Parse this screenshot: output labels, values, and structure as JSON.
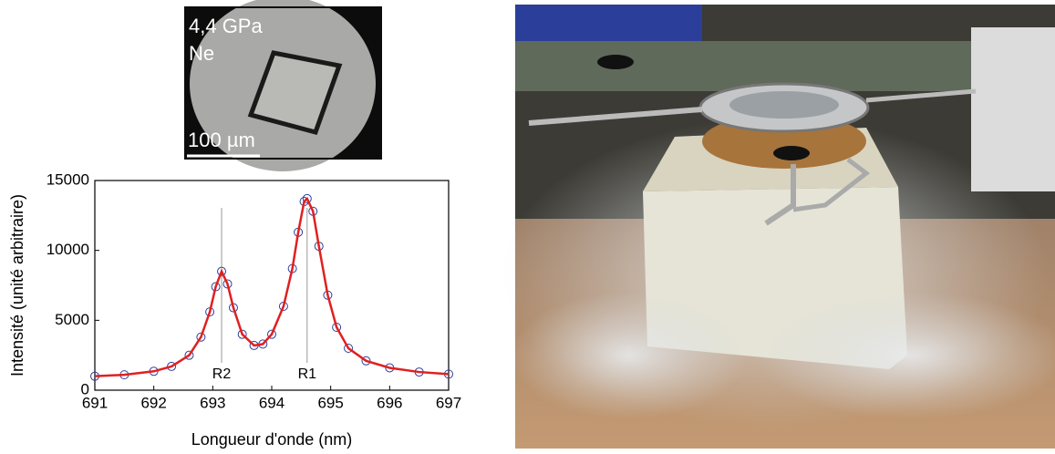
{
  "micrograph": {
    "labels": [
      "4,4 GPa",
      "Ne"
    ],
    "scale_bar": "100 µm"
  },
  "chart_data": {
    "type": "line",
    "x_label": "Longueur d'onde (nm)",
    "y_label": "Intensité (unité arbitraire)",
    "x": [
      691,
      691.5,
      692,
      692.3,
      692.6,
      692.8,
      692.95,
      693.05,
      693.15,
      693.25,
      693.35,
      693.5,
      693.7,
      693.85,
      694.0,
      694.2,
      694.35,
      694.45,
      694.55,
      694.6,
      694.7,
      694.8,
      694.95,
      695.1,
      695.3,
      695.6,
      696,
      696.5,
      697
    ],
    "series": [
      {
        "color": "#2e3f9a",
        "marker": "circle",
        "values": [
          1000,
          1100,
          1350,
          1700,
          2500,
          3800,
          5600,
          7400,
          8500,
          7600,
          5900,
          4000,
          3200,
          3300,
          4000,
          6000,
          8700,
          11300,
          13500,
          13700,
          12800,
          10300,
          6800,
          4500,
          3000,
          2100,
          1600,
          1300,
          1150
        ]
      },
      {
        "color": "#e02020",
        "values": [
          1000,
          1100,
          1350,
          1700,
          2500,
          3800,
          5600,
          7400,
          8500,
          7600,
          5900,
          4000,
          3200,
          3300,
          4000,
          6000,
          8700,
          11300,
          13500,
          13700,
          12800,
          10300,
          6800,
          4500,
          3000,
          2100,
          1600,
          1300,
          1150
        ]
      }
    ],
    "annotations": [
      {
        "text": "R2",
        "x": 693.15
      },
      {
        "text": "R1",
        "x": 694.6
      }
    ],
    "xlim": [
      691,
      697
    ],
    "xticks": [
      691,
      692,
      693,
      694,
      695,
      696,
      697
    ],
    "ylim": [
      0,
      15000
    ],
    "yticks": [
      0,
      5000,
      10000,
      15000
    ]
  }
}
